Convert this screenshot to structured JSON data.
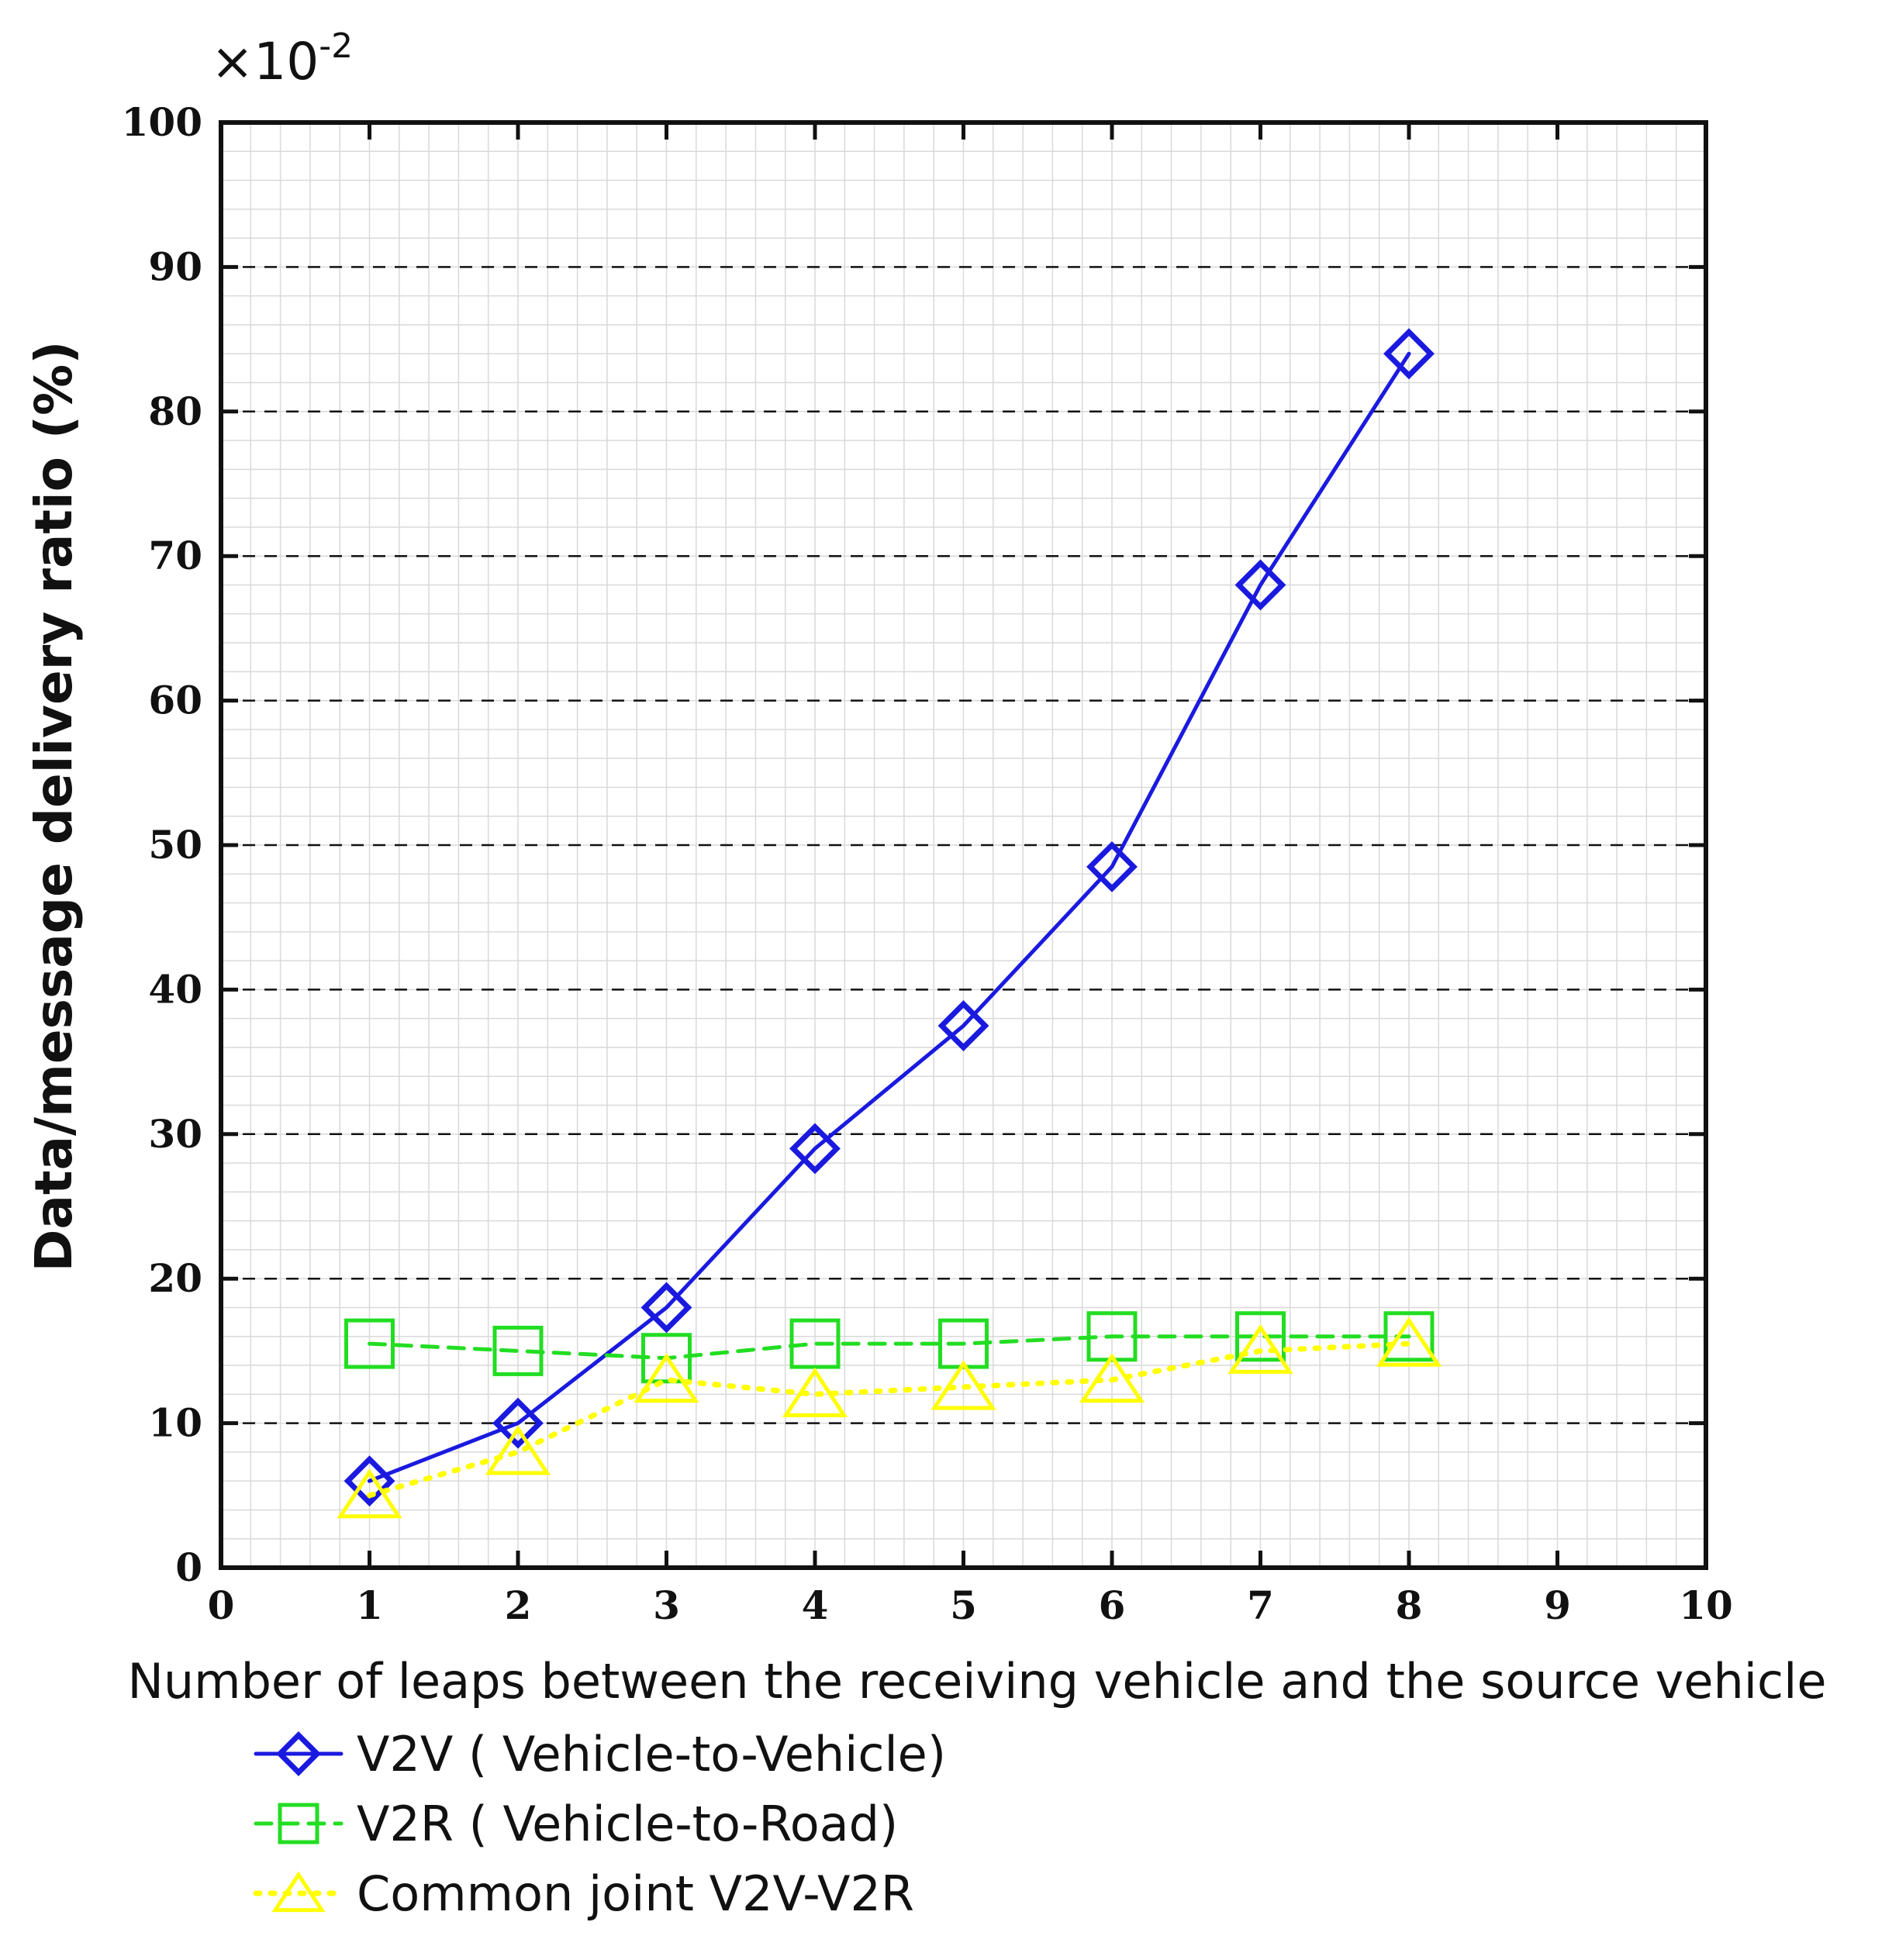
{
  "chart_data": {
    "type": "line",
    "multiplier_base": "×10",
    "multiplier_exponent": "-2",
    "xlabel": "Number of leaps between the receiving vehicle and the source vehicle",
    "ylabel": "Data/message delivery ratio (%)",
    "xlim": [
      0,
      10
    ],
    "ylim": [
      0,
      100
    ],
    "xticks": [
      "0",
      "1",
      "2",
      "3",
      "4",
      "5",
      "6",
      "7",
      "8",
      "9",
      "10"
    ],
    "yticks": [
      "0",
      "10",
      "20",
      "30",
      "40",
      "50",
      "60",
      "70",
      "80",
      "90",
      "100"
    ],
    "grid": true,
    "legend_position": "bottom-left",
    "x": [
      1,
      2,
      3,
      4,
      5,
      6,
      7,
      8
    ],
    "series": [
      {
        "name": "V2V ( Vehicle-to-Vehicle)",
        "color": "#1a1adf",
        "marker": "diamond",
        "line": "solid",
        "values": [
          6,
          10,
          18,
          29,
          37.5,
          48.5,
          68,
          84
        ]
      },
      {
        "name": "V2R ( Vehicle-to-Road)",
        "color": "#22dd22",
        "marker": "square",
        "line": "dashed",
        "values": [
          15.5,
          15,
          14.5,
          15.5,
          15.5,
          16,
          16,
          16
        ]
      },
      {
        "name": "Common joint V2V-V2R",
        "color": "#ffff00",
        "marker": "triangle",
        "line": "dotted",
        "values": [
          5,
          8,
          13,
          12,
          12.5,
          13,
          15,
          15.5
        ]
      }
    ]
  }
}
